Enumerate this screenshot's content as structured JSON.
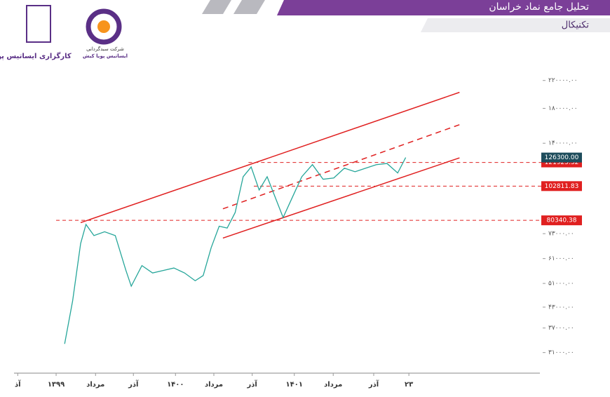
{
  "header": {
    "title": "تحلیل جامع نماد خراسان",
    "subtitle": "تکنیکال"
  },
  "logos": {
    "broker": "کارگزاری ایساتیس پویا",
    "fund_line1": "شرکت سبدگردانی",
    "fund_line2": "ایساتیس پویا کیش"
  },
  "chart_data": {
    "type": "line",
    "log_scale": true,
    "xlim": [
      0,
      100
    ],
    "ylim": [
      27000,
      237000
    ],
    "xticks": [
      {
        "value": 0.7,
        "label": "آذ"
      },
      {
        "value": 7.9,
        "label": "۱۳۹۹"
      },
      {
        "value": 15.3,
        "label": "مرداد"
      },
      {
        "value": 22.4,
        "label": "آذر"
      },
      {
        "value": 30.3,
        "label": "۱۴۰۰"
      },
      {
        "value": 37.5,
        "label": "مرداد"
      },
      {
        "value": 44.7,
        "label": "آذر"
      },
      {
        "value": 52.6,
        "label": "۱۴۰۱"
      },
      {
        "value": 59.9,
        "label": "مرداد"
      },
      {
        "value": 67.5,
        "label": "آذر"
      },
      {
        "value": 74.1,
        "label": "۲۳"
      }
    ],
    "yticks": [
      {
        "value": 220000,
        "label": "۲۲۰۰۰۰.۰۰"
      },
      {
        "value": 180000,
        "label": "۱۸۰۰۰۰.۰۰"
      },
      {
        "value": 140000,
        "label": "۱۴۰۰۰۰.۰۰"
      },
      {
        "value": 73000,
        "label": "۷۳۰۰۰.۰۰"
      },
      {
        "value": 61000,
        "label": "۶۱۰۰۰.۰۰"
      },
      {
        "value": 51000,
        "label": "۵۱۰۰۰.۰۰"
      },
      {
        "value": 43000,
        "label": "۴۳۰۰۰.۰۰"
      },
      {
        "value": 37000,
        "label": "۳۷۰۰۰.۰۰"
      },
      {
        "value": 31000,
        "label": "۳۱۰۰۰.۰۰"
      }
    ],
    "series": [
      {
        "color": "#26a69a",
        "x": [
          9.5,
          11,
          12.5,
          13.5,
          15,
          17,
          19,
          21,
          22,
          24,
          26,
          28,
          30,
          32,
          34,
          35.5,
          37,
          38.5,
          40,
          41.5,
          43,
          44.5,
          46,
          47.5,
          49,
          50.5,
          52,
          54,
          56,
          58,
          60,
          62,
          64,
          66,
          68,
          70,
          72,
          73.5
        ],
        "values": [
          33000,
          45000,
          68000,
          78000,
          72000,
          74000,
          72000,
          56000,
          50000,
          58000,
          55000,
          56000,
          57000,
          55000,
          52000,
          54000,
          66000,
          77000,
          76000,
          85000,
          110000,
          118000,
          100000,
          110000,
          95000,
          82000,
          93000,
          110000,
          120000,
          108000,
          109000,
          117000,
          114000,
          117000,
          120000,
          121000,
          113000,
          126300
        ]
      }
    ],
    "trend_lines": [
      {
        "x": [
          12.5,
          83.6
        ],
        "values": [
          79000,
          202000
        ],
        "color": "#e02020",
        "dashed": false
      },
      {
        "x": [
          39.2,
          83.6
        ],
        "values": [
          87300,
          160000
        ],
        "color": "#e02020",
        "dashed": true
      },
      {
        "x": [
          39.2,
          83.6
        ],
        "values": [
          70700,
          126000
        ],
        "color": "#e02020",
        "dashed": false
      }
    ],
    "levels": [
      {
        "x": 44,
        "value": 121925.32,
        "label": "121925.32",
        "color": "#e02020"
      },
      {
        "x": 45,
        "value": 102811.83,
        "label": "102811.83",
        "color": "#e02020"
      },
      {
        "x": 7.9,
        "value": 80340.38,
        "label": "80340.38",
        "color": "#e02020"
      }
    ],
    "last_price": {
      "value": 126300,
      "label": "126300.00",
      "color": "#1e4d5c"
    }
  }
}
